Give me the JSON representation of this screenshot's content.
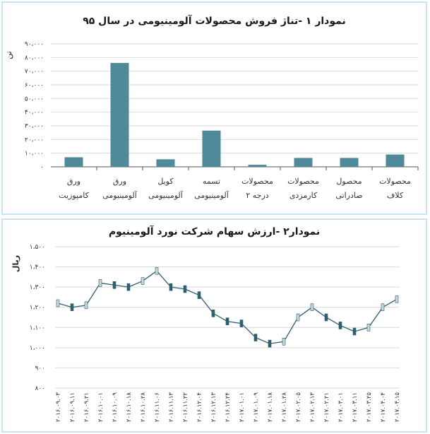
{
  "colors": {
    "bar": "#4f8a9b",
    "panel_border": "#c8e4ef",
    "grid": "#d9d9d9",
    "axis": "#555555",
    "candle_up": "#c8d6da",
    "candle_down": "#2f5f6e"
  },
  "chart_data": [
    {
      "type": "bar",
      "title": "نمودار ۱ -تناژ فروش محصولات آلومینیومی در سال ۹۵",
      "ylabel": "تن",
      "ylim": [
        0,
        90000
      ],
      "yticks": [
        "۰",
        "۱۰،۰۰۰",
        "۲۰،۰۰۰",
        "۳۰،۰۰۰",
        "۴۰،۰۰۰",
        "۵۰،۰۰۰",
        "۶۰،۰۰۰",
        "۷۰،۰۰۰",
        "۸۰،۰۰۰",
        "۹۰،۰۰۰"
      ],
      "categories": [
        [
          "ورق",
          "کامپوزیت"
        ],
        [
          "ورق",
          "آلومینیومی"
        ],
        [
          "کویل",
          "آلومینیومی"
        ],
        [
          "تسمه",
          "آلومینیومی"
        ],
        [
          "محصولات",
          "درجه ۲"
        ],
        [
          "محصولات",
          "کارمزدی"
        ],
        [
          "محصول",
          "صادراتی"
        ],
        [
          "محصولات",
          "کلاف"
        ]
      ],
      "values": [
        7000,
        76000,
        5500,
        26500,
        1500,
        6500,
        6500,
        9000
      ],
      "grid": true
    },
    {
      "type": "line",
      "title": "نمودار۲ -ارزش سهام شرکت نورد آلومینیوم",
      "ylabel": "ریال",
      "ylim": [
        800,
        1500
      ],
      "yticks": [
        "۸۰۰",
        "۹۰۰",
        "۱،۰۰۰",
        "۱،۱۰۰",
        "۱،۲۰۰",
        "۱،۳۰۰",
        "۱،۴۰۰",
        "۱،۵۰۰"
      ],
      "xtick_labels": [
        "۲۰۱۶.۰۹.۰۳",
        "۲۰۱۶.۰۹.۱۱",
        "۲۰۱۶.۰۹.۲۱",
        "۲۰۱۶.۱۰.۰۱",
        "۲۰۱۶.۱۰.۰۹",
        "۲۰۱۶.۱۰.۱۸",
        "۲۰۱۶.۱۰.۲۸",
        "۲۰۱۶.۱۱.۰۶",
        "۲۰۱۶.۱۱.۱۳",
        "۲۰۱۶.۱۱.۲۲",
        "۲۰۱۶.۱۲.۰۴",
        "۲۰۱۶.۱۲.۱۳",
        "۲۰۱۶.۱۲.۲۴",
        "۲۰۱۷.۰۱.۰۱",
        "۲۰۱۷.۰۱.۰۹",
        "۲۰۱۷.۰۱.۱۸",
        "۲۰۱۷.۰۱.۲۸",
        "۲۰۱۷.۰۲.۰۵",
        "۲۰۱۷.۰۲.۱۳",
        "۲۰۱۷.۰۲.۲۱",
        "۲۰۱۷.۰۳.۰۱",
        "۲۰۱۷.۰۳.۱۱",
        "۲۰۱۷.۰۳.۲۵",
        "۲۰۱۷.۰۴.۰۴",
        "۲۰۱۷.۰۴.۱۵"
      ],
      "x": [
        "2016-09-03",
        "2016-09-11",
        "2016-09-21",
        "2016-10-01",
        "2016-10-09",
        "2016-10-18",
        "2016-10-28",
        "2016-11-06",
        "2016-11-13",
        "2016-11-22",
        "2016-12-04",
        "2016-12-13",
        "2016-12-24",
        "2017-01-01",
        "2017-01-09",
        "2017-01-18",
        "2017-01-28",
        "2017-02-05",
        "2017-02-13",
        "2017-02-21",
        "2017-03-01",
        "2017-03-11",
        "2017-03-25",
        "2017-04-04",
        "2017-04-15"
      ],
      "y": [
        1220,
        1200,
        1210,
        1320,
        1310,
        1300,
        1330,
        1380,
        1300,
        1290,
        1260,
        1170,
        1130,
        1120,
        1050,
        1020,
        1030,
        1150,
        1200,
        1150,
        1110,
        1080,
        1100,
        1200,
        1240
      ],
      "grid": true
    }
  ]
}
